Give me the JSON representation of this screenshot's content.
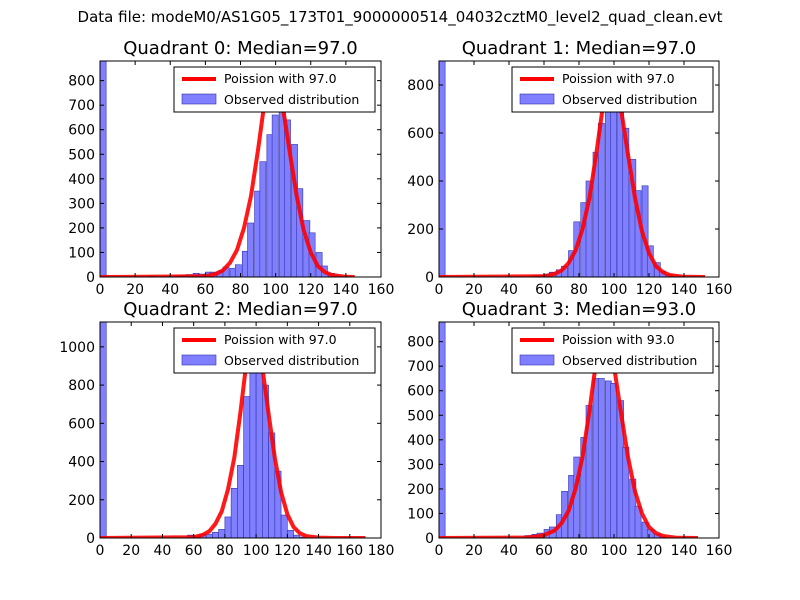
{
  "suptitle": "Data file: modeM0/AS1G05_173T01_9000000514_04032cztM0_level2_quad_clean.evt",
  "colors": {
    "bar_fill": "#7f7fff",
    "bar_edge": "#3333aa",
    "line": "#ff0000"
  },
  "chart_data": [
    {
      "type": "bar",
      "title": "Quadrant 0: Median=97.0",
      "median": 97.0,
      "xlim": [
        0,
        160
      ],
      "ylim": [
        0,
        880
      ],
      "xticks": [
        0,
        20,
        40,
        60,
        80,
        100,
        120,
        140,
        160
      ],
      "yticks": [
        0,
        100,
        200,
        300,
        400,
        500,
        600,
        700,
        800
      ],
      "bin_width": 3.5,
      "bins": [
        [
          0,
          880
        ],
        [
          28,
          3
        ],
        [
          35,
          2
        ],
        [
          42,
          5
        ],
        [
          46,
          8
        ],
        [
          49,
          10
        ],
        [
          53,
          15
        ],
        [
          56,
          12
        ],
        [
          60,
          20
        ],
        [
          63,
          20
        ],
        [
          67,
          25
        ],
        [
          70,
          40
        ],
        [
          74,
          35
        ],
        [
          77,
          50
        ],
        [
          81,
          105
        ],
        [
          84,
          220
        ],
        [
          88,
          350
        ],
        [
          91,
          470
        ],
        [
          95,
          580
        ],
        [
          98,
          660
        ],
        [
          102,
          700
        ],
        [
          105,
          640
        ],
        [
          109,
          540
        ],
        [
          112,
          360
        ],
        [
          116,
          230
        ],
        [
          119,
          180
        ],
        [
          123,
          100
        ],
        [
          126,
          45
        ],
        [
          130,
          15
        ],
        [
          133,
          5
        ],
        [
          137,
          2
        ]
      ],
      "curve": {
        "x": [
          0,
          60,
          66,
          70,
          74,
          78,
          82,
          86,
          90,
          94,
          97,
          100,
          104,
          108,
          112,
          116,
          120,
          124,
          128,
          132,
          140,
          145
        ],
        "y": [
          0,
          3,
          13,
          27,
          58,
          110,
          200,
          330,
          520,
          730,
          845,
          830,
          700,
          510,
          330,
          190,
          100,
          45,
          20,
          8,
          1,
          0
        ]
      },
      "legend": {
        "line_label": "Poission with 97.0",
        "bar_label": "Observed distribution"
      }
    },
    {
      "type": "bar",
      "title": "Quadrant 1: Median=97.0",
      "median": 97.0,
      "xlim": [
        0,
        160
      ],
      "ylim": [
        0,
        900
      ],
      "xticks": [
        0,
        20,
        40,
        60,
        80,
        100,
        120,
        140,
        160
      ],
      "yticks": [
        0,
        200,
        400,
        600,
        800
      ],
      "bin_width": 3.5,
      "bins": [
        [
          0,
          900
        ],
        [
          53,
          5
        ],
        [
          56,
          8
        ],
        [
          60,
          12
        ],
        [
          63,
          20
        ],
        [
          67,
          30
        ],
        [
          70,
          45
        ],
        [
          74,
          110
        ],
        [
          77,
          230
        ],
        [
          81,
          310
        ],
        [
          84,
          400
        ],
        [
          88,
          520
        ],
        [
          91,
          640
        ],
        [
          95,
          760
        ],
        [
          98,
          780
        ],
        [
          102,
          770
        ],
        [
          105,
          620
        ],
        [
          109,
          490
        ],
        [
          112,
          360
        ],
        [
          116,
          380
        ],
        [
          119,
          130
        ],
        [
          123,
          60
        ],
        [
          126,
          25
        ],
        [
          130,
          10
        ],
        [
          133,
          4
        ],
        [
          137,
          2
        ]
      ],
      "curve": {
        "x": [
          0,
          60,
          66,
          70,
          74,
          78,
          82,
          86,
          90,
          94,
          97,
          100,
          104,
          108,
          112,
          116,
          120,
          124,
          128,
          132,
          140,
          152
        ],
        "y": [
          0,
          3,
          13,
          27,
          58,
          110,
          200,
          330,
          520,
          730,
          845,
          830,
          700,
          510,
          330,
          190,
          100,
          45,
          20,
          8,
          1,
          0
        ]
      },
      "legend": {
        "line_label": "Poission with 97.0",
        "bar_label": "Observed distribution"
      }
    },
    {
      "type": "bar",
      "title": "Quadrant 2: Median=97.0",
      "median": 97.0,
      "xlim": [
        0,
        180
      ],
      "ylim": [
        0,
        1130
      ],
      "xticks": [
        0,
        20,
        40,
        60,
        80,
        100,
        120,
        140,
        160,
        180
      ],
      "yticks": [
        0,
        200,
        400,
        600,
        800,
        1000
      ],
      "bin_width": 4,
      "bins": [
        [
          0,
          1130
        ],
        [
          56,
          15
        ],
        [
          60,
          10
        ],
        [
          64,
          20
        ],
        [
          68,
          20
        ],
        [
          72,
          30
        ],
        [
          76,
          45
        ],
        [
          80,
          110
        ],
        [
          84,
          260
        ],
        [
          88,
          380
        ],
        [
          92,
          740
        ],
        [
          96,
          960
        ],
        [
          100,
          890
        ],
        [
          104,
          800
        ],
        [
          108,
          550
        ],
        [
          112,
          350
        ],
        [
          116,
          120
        ],
        [
          120,
          40
        ],
        [
          124,
          15
        ],
        [
          128,
          5
        ]
      ],
      "curve": {
        "x": [
          0,
          60,
          66,
          70,
          74,
          78,
          82,
          86,
          90,
          94,
          97,
          100,
          104,
          108,
          112,
          116,
          120,
          124,
          128,
          132,
          140,
          150,
          170
        ],
        "y": [
          0,
          4,
          17,
          35,
          75,
          140,
          255,
          420,
          660,
          930,
          1075,
          1055,
          890,
          650,
          420,
          240,
          125,
          57,
          25,
          10,
          2,
          0,
          0
        ]
      },
      "legend": {
        "line_label": "Poission with 97.0",
        "bar_label": "Observed distribution"
      }
    },
    {
      "type": "bar",
      "title": "Quadrant 3: Median=93.0",
      "median": 93.0,
      "xlim": [
        0,
        160
      ],
      "ylim": [
        0,
        880
      ],
      "xticks": [
        0,
        20,
        40,
        60,
        80,
        100,
        120,
        140,
        160
      ],
      "yticks": [
        0,
        100,
        200,
        300,
        400,
        500,
        600,
        700,
        800
      ],
      "bin_width": 3.5,
      "bins": [
        [
          0,
          880
        ],
        [
          49,
          10
        ],
        [
          53,
          15
        ],
        [
          56,
          20
        ],
        [
          60,
          35
        ],
        [
          63,
          45
        ],
        [
          67,
          95
        ],
        [
          70,
          190
        ],
        [
          74,
          255
        ],
        [
          77,
          330
        ],
        [
          81,
          410
        ],
        [
          84,
          540
        ],
        [
          88,
          650
        ],
        [
          91,
          650
        ],
        [
          95,
          640
        ],
        [
          98,
          630
        ],
        [
          102,
          560
        ],
        [
          105,
          370
        ],
        [
          109,
          240
        ],
        [
          112,
          130
        ],
        [
          116,
          65
        ],
        [
          119,
          35
        ],
        [
          123,
          15
        ],
        [
          126,
          5
        ]
      ],
      "curve": {
        "x": [
          0,
          50,
          56,
          60,
          66,
          70,
          74,
          78,
          82,
          86,
          90,
          93,
          96,
          100,
          104,
          108,
          112,
          116,
          120,
          124,
          128,
          136,
          148
        ],
        "y": [
          0,
          2,
          6,
          12,
          30,
          60,
          110,
          200,
          330,
          520,
          730,
          845,
          830,
          700,
          510,
          330,
          190,
          100,
          45,
          20,
          8,
          1,
          0
        ]
      },
      "legend": {
        "line_label": "Poission with 93.0",
        "bar_label": "Observed distribution"
      }
    }
  ]
}
